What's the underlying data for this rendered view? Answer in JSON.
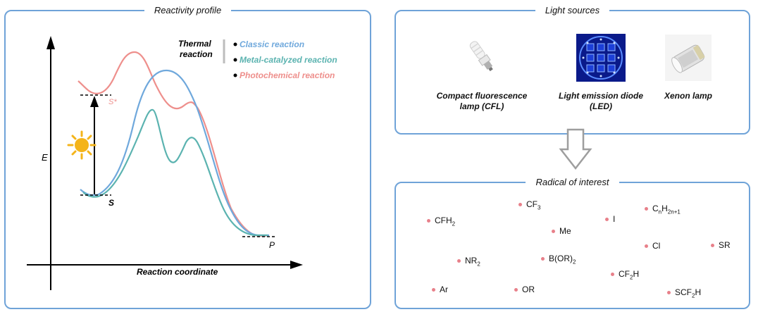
{
  "reactivity": {
    "title": "Reactivity profile",
    "axis_y": "E",
    "axis_x": "Reaction coordinate",
    "state_start": "S",
    "state_excited": "S*",
    "state_product": "P",
    "legend_group": "Thermal reaction",
    "legend_group_line1": "Thermal",
    "legend_group_line2": "reaction",
    "legend": [
      {
        "label": "Classic reaction",
        "color": "#6fa8dc"
      },
      {
        "label": "Metal-catalyzed reaction",
        "color": "#5bb3b0"
      },
      {
        "label": "Photochemical reaction",
        "color": "#ee8f8c"
      }
    ]
  },
  "light": {
    "title": "Light sources",
    "sources": [
      {
        "label_line1": "Compact fluorescence",
        "label_line2": "lamp (CFL)",
        "icon": "cfl-bulb"
      },
      {
        "label_line1": "Light emission diode",
        "label_line2": "(LED)",
        "icon": "led-panel"
      },
      {
        "label_line1": "Xenon lamp",
        "label_line2": "",
        "icon": "xenon-lamp"
      }
    ]
  },
  "radicals": {
    "title": "Radical of interest",
    "items": [
      {
        "base": "CF",
        "sub": "3",
        "tail": "",
        "sub2": ""
      },
      {
        "base": "C",
        "sub": "n",
        "tail": "H",
        "sub2": "2n+1"
      },
      {
        "base": "CFH",
        "sub": "2",
        "tail": "",
        "sub2": ""
      },
      {
        "base": "I",
        "sub": "",
        "tail": "",
        "sub2": ""
      },
      {
        "base": "Me",
        "sub": "",
        "tail": "",
        "sub2": ""
      },
      {
        "base": "Cl",
        "sub": "",
        "tail": "",
        "sub2": ""
      },
      {
        "base": "SR",
        "sub": "",
        "tail": "",
        "sub2": ""
      },
      {
        "base": "NR",
        "sub": "2",
        "tail": "",
        "sub2": ""
      },
      {
        "base": "B(OR)",
        "sub": "2",
        "tail": "",
        "sub2": ""
      },
      {
        "base": "CF",
        "sub": "2",
        "tail": "H",
        "sub2": ""
      },
      {
        "base": "Ar",
        "sub": "",
        "tail": "",
        "sub2": ""
      },
      {
        "base": "OR",
        "sub": "",
        "tail": "",
        "sub2": ""
      },
      {
        "base": "SCF",
        "sub": "2",
        "tail": "H",
        "sub2": ""
      }
    ]
  }
}
